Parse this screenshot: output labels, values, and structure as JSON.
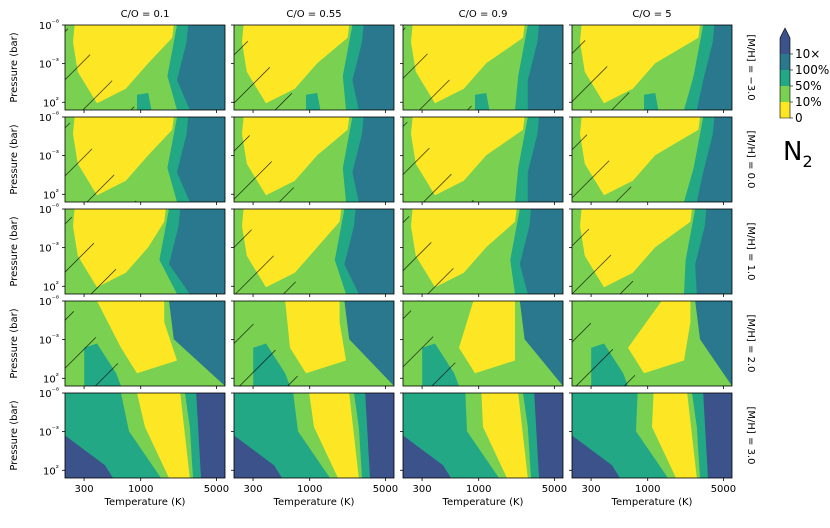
{
  "chart_data": {
    "type": "heatmap",
    "title": "N₂",
    "quantity": "N",
    "quantity_subscript": "2",
    "xlabel": "Temperature (K)",
    "ylabel": "Pressure (bar)",
    "x_scale": "log",
    "y_scale": "log",
    "x_range": [
      200,
      6000
    ],
    "y_range": [
      1e-08,
      1000
    ],
    "x_ticks": [
      300,
      1000,
      5000
    ],
    "x_tick_labels": [
      "300",
      "1000",
      "5000"
    ],
    "y_ticks": [
      1e-08,
      0.001,
      100
    ],
    "y_tick_labels": [
      "10⁻⁸",
      "10⁻³",
      "10²"
    ],
    "columns": [
      {
        "label": "C/O = 0.1",
        "co": 0.1
      },
      {
        "label": "C/O = 0.55",
        "co": 0.55
      },
      {
        "label": "C/O = 0.9",
        "co": 0.9
      },
      {
        "label": "C/O = 5",
        "co": 5
      }
    ],
    "rows": [
      {
        "label": "[M/H] = −3.0",
        "mh": -3.0
      },
      {
        "label": "[M/H] = 0.0",
        "mh": 0.0
      },
      {
        "label": "[M/H] = 1.0",
        "mh": 1.0
      },
      {
        "label": "[M/H] = 2.0",
        "mh": 2.0
      },
      {
        "label": "[M/H] = 3.0",
        "mh": 3.0
      }
    ],
    "colorbar": {
      "levels": [
        "0",
        "10%",
        "50%",
        "100%",
        "10×"
      ],
      "colors": [
        "#fde725",
        "#7ad151",
        "#22a884",
        "#2a788e",
        "#3b528b"
      ],
      "extend": "max"
    },
    "hatch": "diagonal lines mark regions where N₂ is not the dominant nitrogen carrier"
  }
}
